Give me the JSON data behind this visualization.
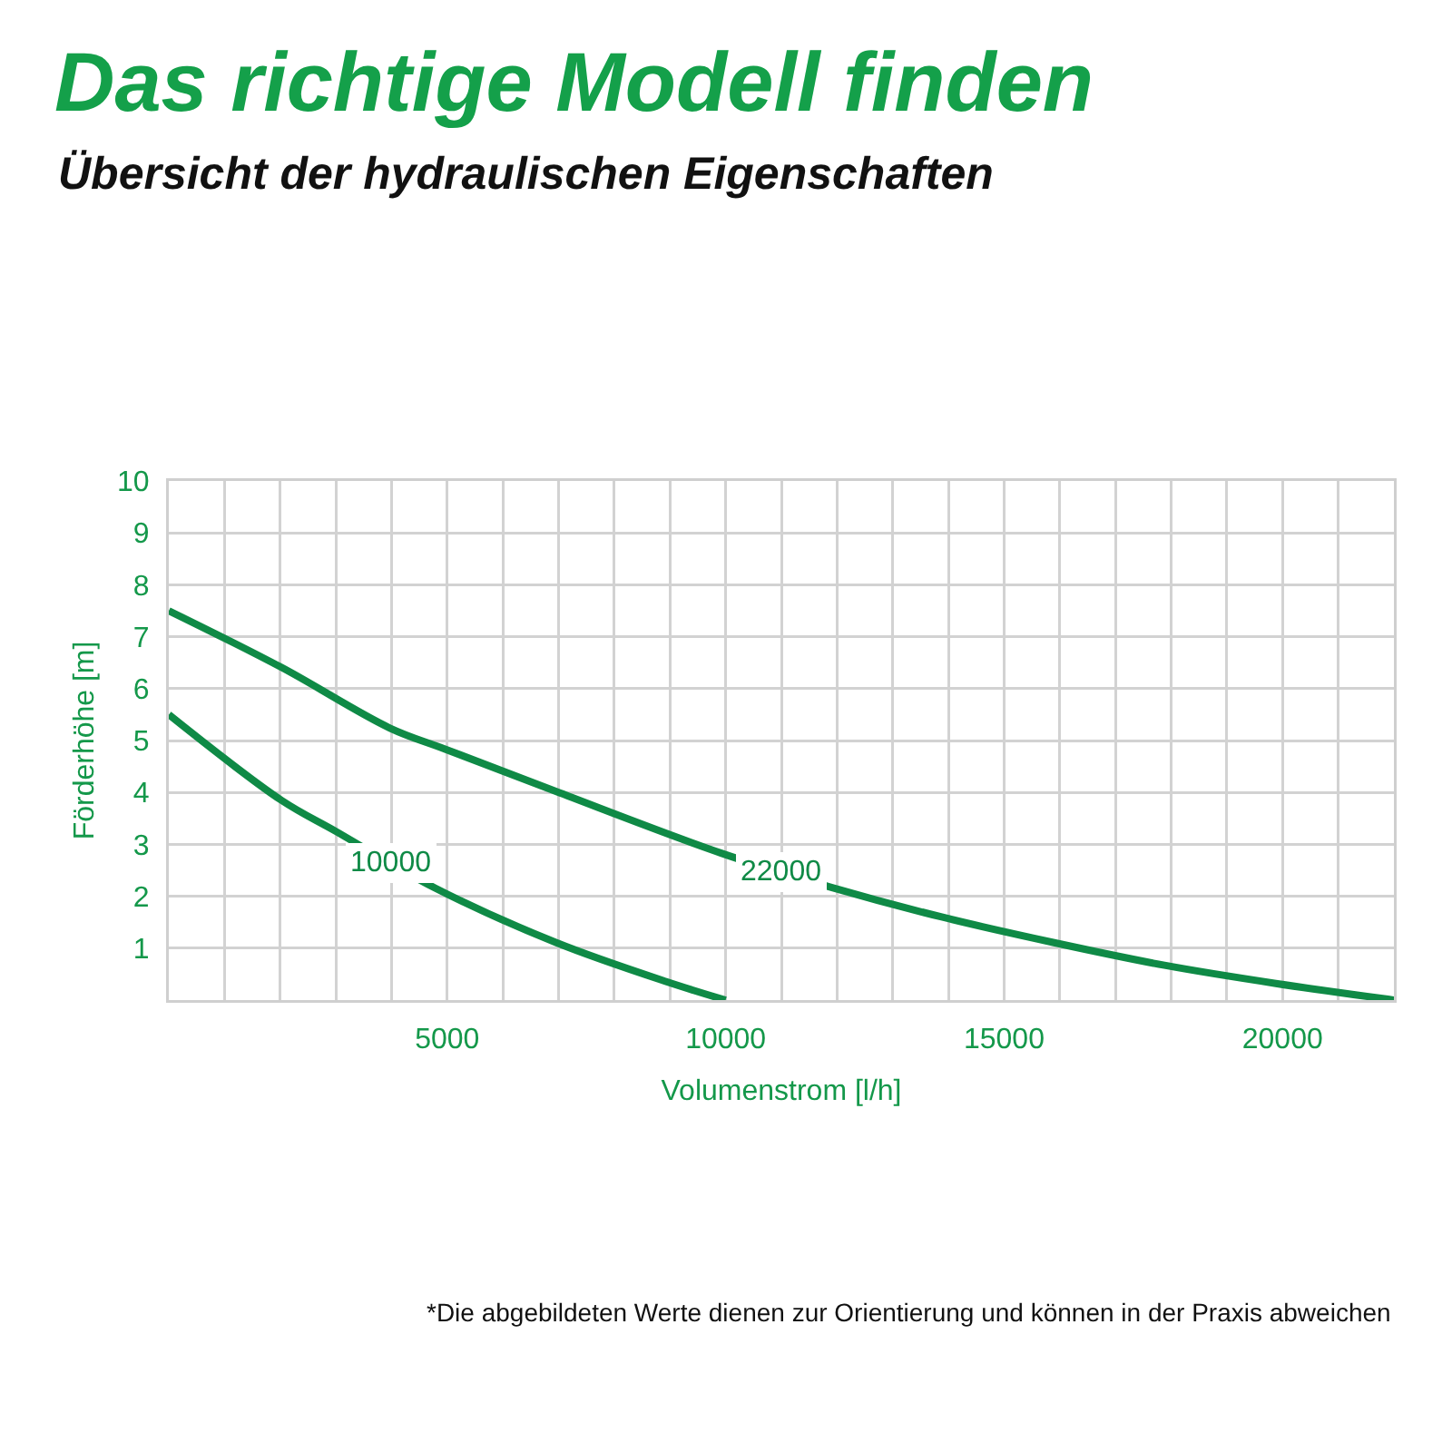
{
  "chart_data": {
    "type": "line",
    "title": "Das richtige Modell finden",
    "subtitle": "Übersicht der hydraulischen Eigenschaften",
    "xlabel": "Volumenstrom [l/h]",
    "ylabel": "Förderhöhe [m]",
    "xlim": [
      0,
      22000
    ],
    "xticks": [
      {
        "value": 1000,
        "label": null
      },
      {
        "value": 2000,
        "label": null
      },
      {
        "value": 3000,
        "label": null
      },
      {
        "value": 4000,
        "label": null
      },
      {
        "value": 5000,
        "label": "5000"
      },
      {
        "value": 6000,
        "label": null
      },
      {
        "value": 7000,
        "label": null
      },
      {
        "value": 8000,
        "label": null
      },
      {
        "value": 9000,
        "label": null
      },
      {
        "value": 10000,
        "label": "10000"
      },
      {
        "value": 11000,
        "label": null
      },
      {
        "value": 12000,
        "label": null
      },
      {
        "value": 13000,
        "label": null
      },
      {
        "value": 14000,
        "label": null
      },
      {
        "value": 15000,
        "label": "15000"
      },
      {
        "value": 16000,
        "label": null
      },
      {
        "value": 17000,
        "label": null
      },
      {
        "value": 18000,
        "label": null
      },
      {
        "value": 19000,
        "label": null
      },
      {
        "value": 20000,
        "label": "20000"
      },
      {
        "value": 21000,
        "label": null
      }
    ],
    "ylim": [
      0,
      10
    ],
    "yticks": [
      1,
      2,
      3,
      4,
      5,
      6,
      7,
      8,
      9,
      10
    ],
    "grid": true,
    "legend": false,
    "marker": "none",
    "line_style": "solid",
    "series": [
      {
        "name": "10000",
        "color": "#0f8a46",
        "x": [
          0,
          2020,
          3000,
          4780,
          6950,
          8950,
          10000
        ],
        "values": [
          5.5,
          3.85,
          3.25,
          2.16,
          1.11,
          0.35,
          0
        ]
      },
      {
        "name": "22000",
        "color": "#0f8a46",
        "x": [
          0,
          2020,
          3970,
          4950,
          6950,
          9920,
          11870,
          13880,
          15880,
          17880,
          19880,
          22000
        ],
        "values": [
          7.5,
          6.41,
          5.24,
          4.84,
          4.02,
          2.83,
          2.18,
          1.6,
          1.11,
          0.67,
          0.32,
          0
        ]
      }
    ],
    "annotations": [
      "*Die abgebildeten Werte dienen zur Orientierung und können in der Praxis abweichen"
    ]
  }
}
